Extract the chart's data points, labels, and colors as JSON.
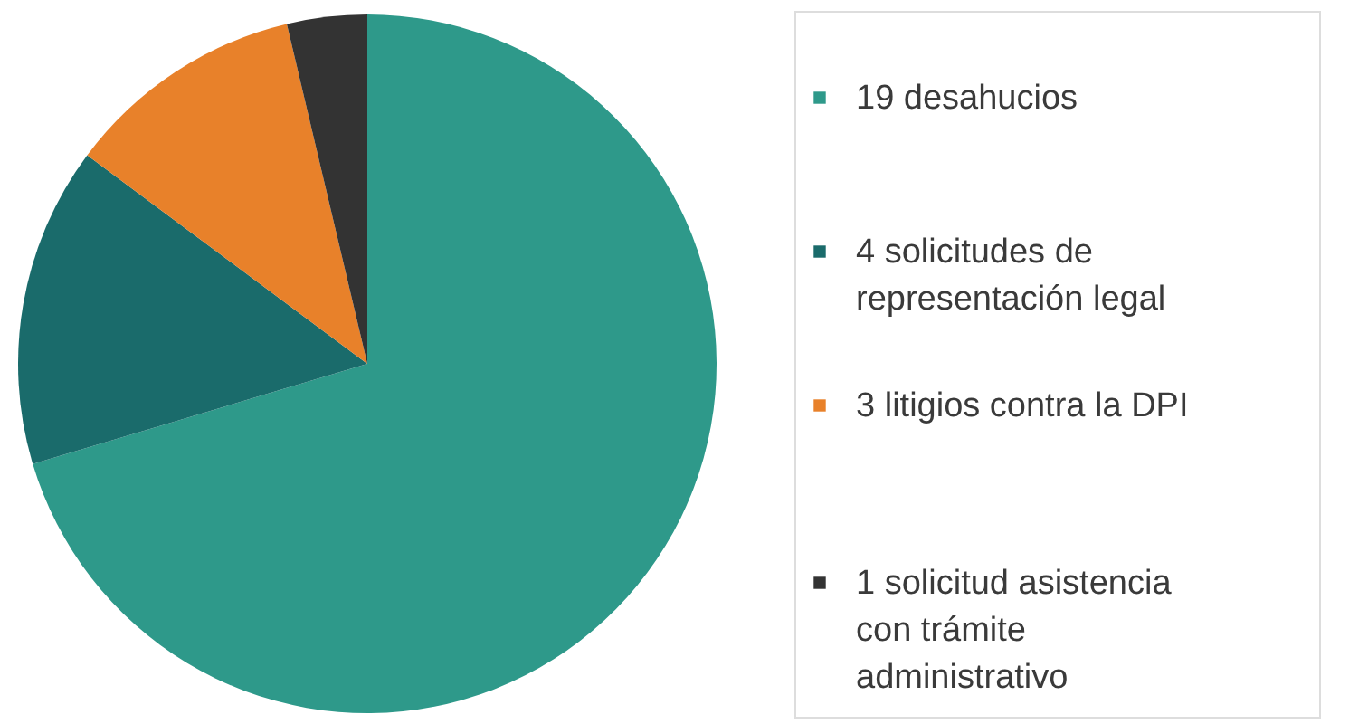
{
  "chart_data": {
    "type": "pie",
    "categories": [
      "19 desahucios",
      "4 solicitudes de representación legal",
      "3 litigios contra la DPI",
      "1 solicitud asistencia con trámite administrativo"
    ],
    "values": [
      19,
      4,
      3,
      1
    ],
    "colors": [
      "#2e998a",
      "#1a6b6b",
      "#e8812a",
      "#333333"
    ],
    "legend": "right"
  }
}
